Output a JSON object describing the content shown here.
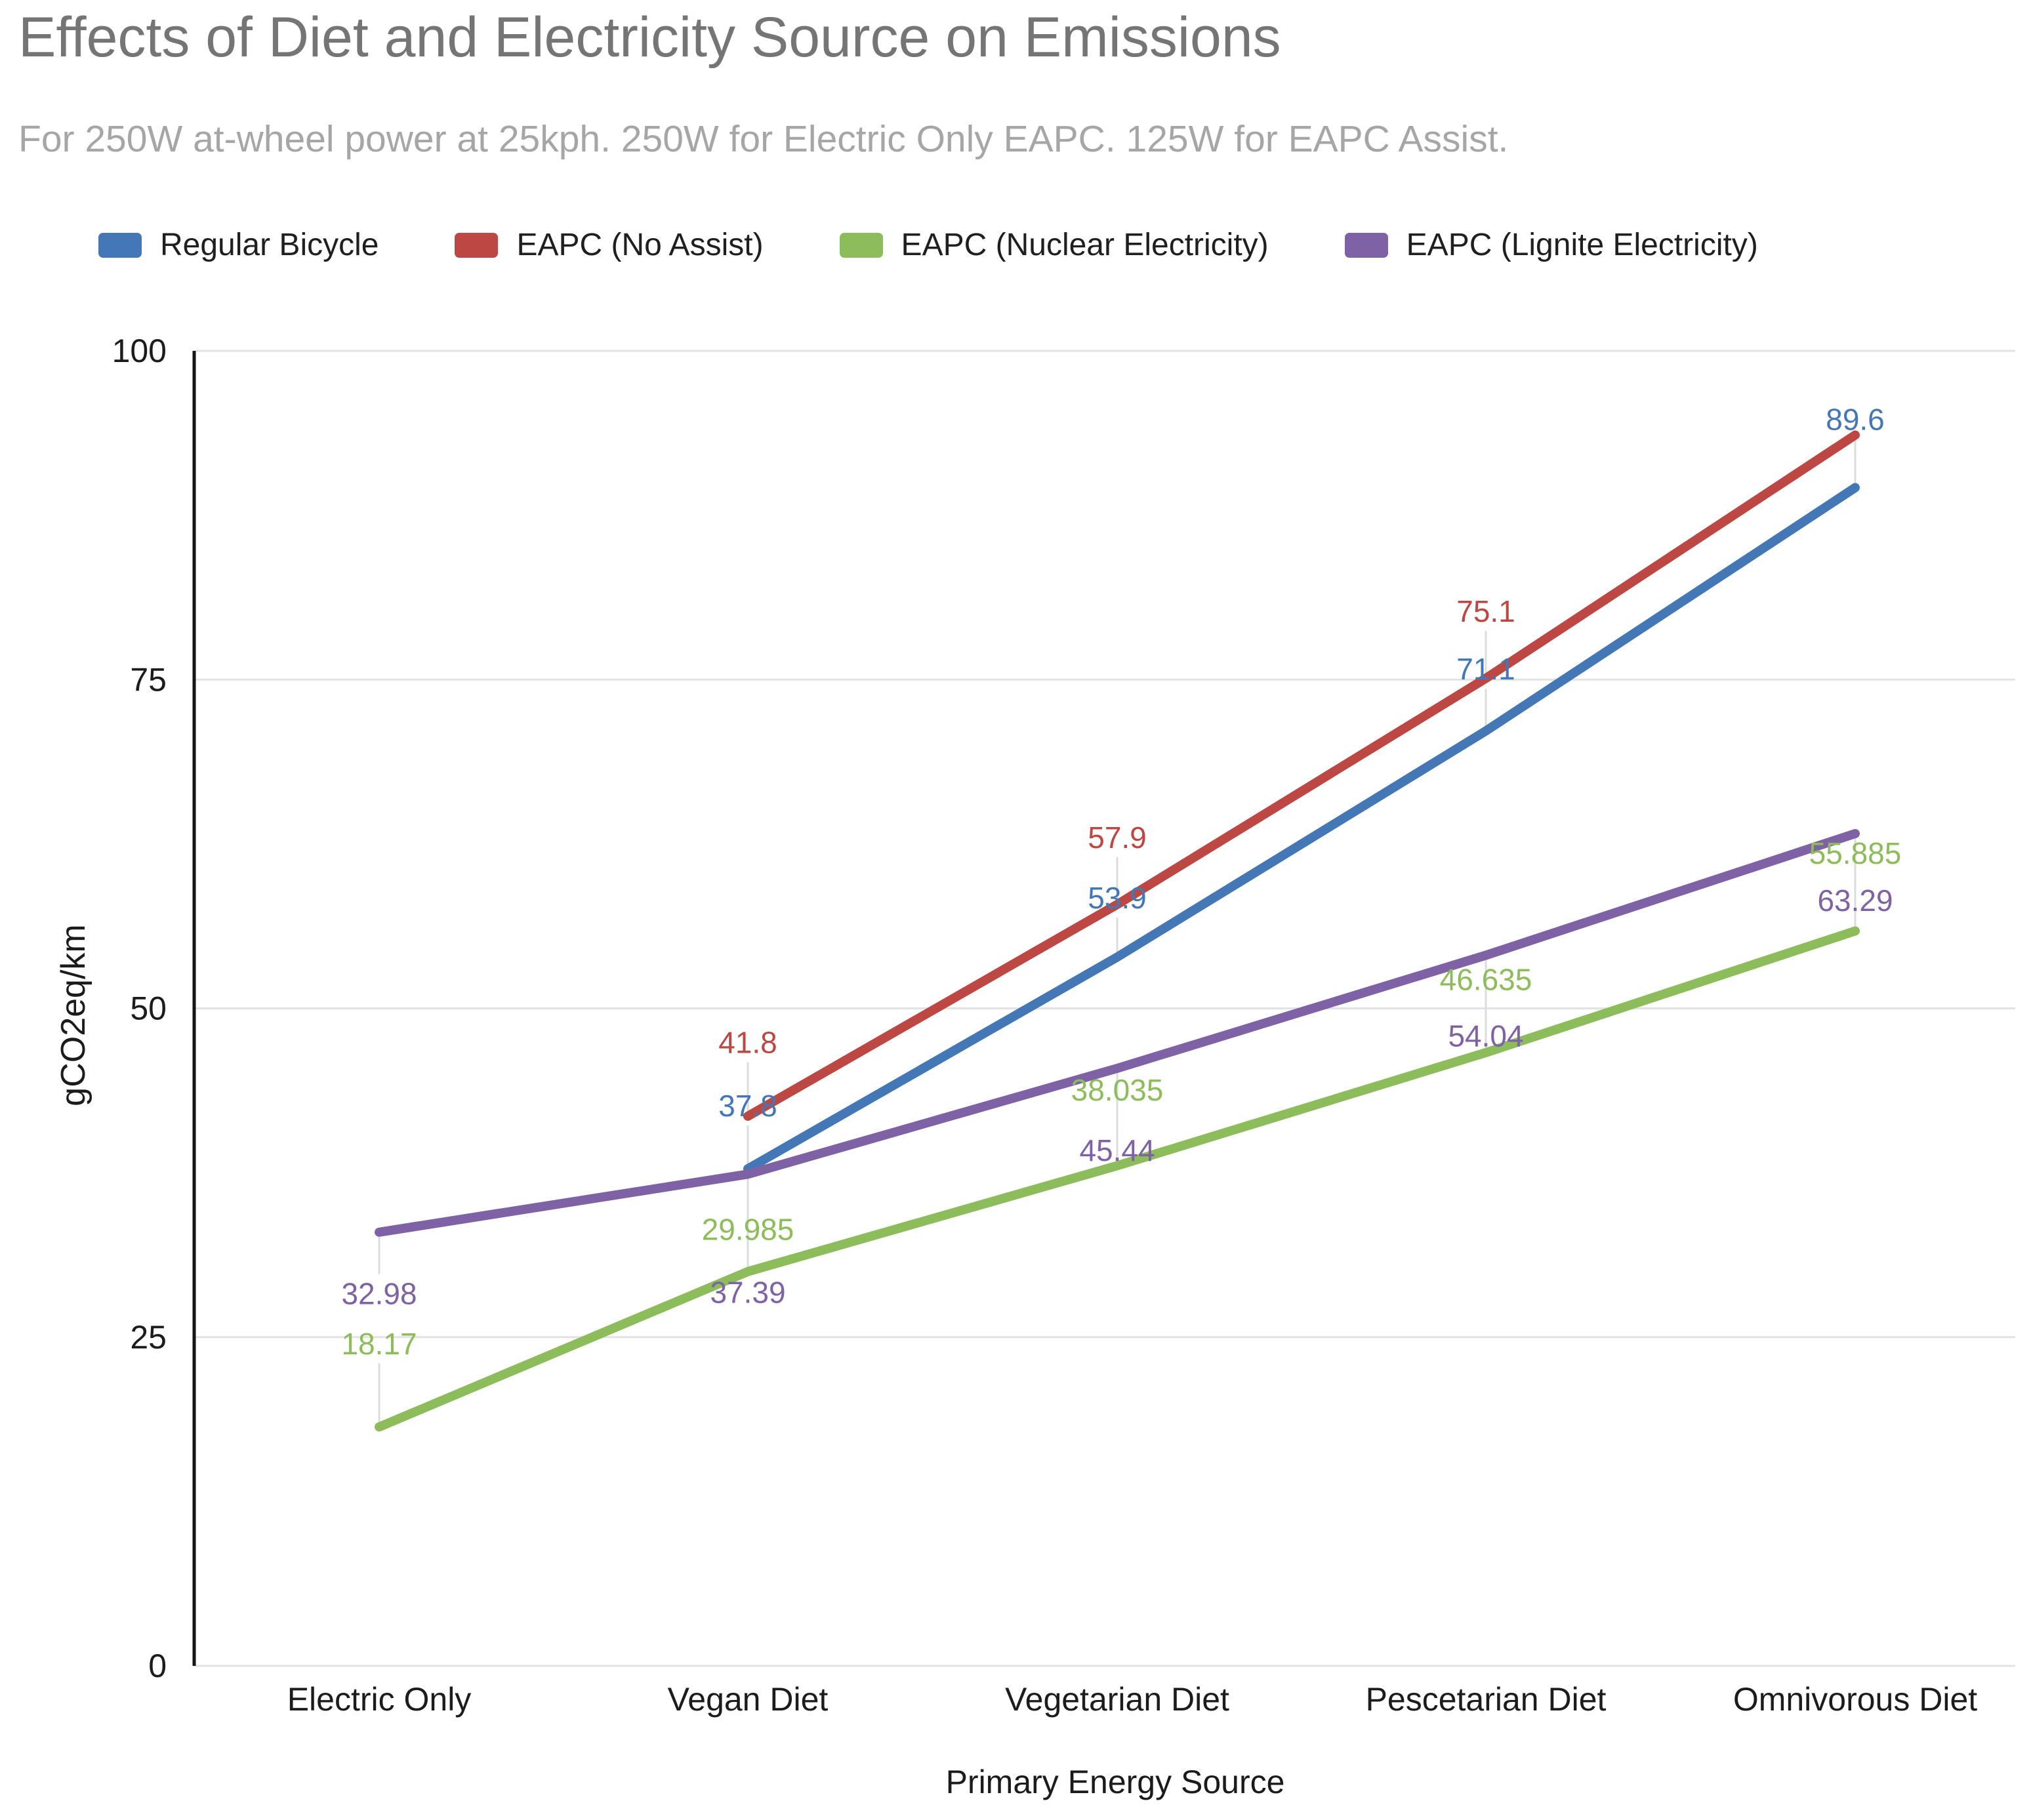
{
  "page": {
    "background": "#ffffff"
  },
  "chart_data": {
    "type": "line",
    "title": "Effects of Diet and Electricity Source on Emissions",
    "subtitle": "For 250W at-wheel power at 25kph. 250W for Electric Only EAPC. 125W for EAPC Assist.",
    "xlabel": "Primary Energy Source",
    "ylabel": "gCO2eq/km",
    "ylim": [
      0,
      100
    ],
    "yticks": [
      0,
      25,
      50,
      75,
      100
    ],
    "grid": true,
    "legend_position": "top",
    "categories": [
      "Electric Only",
      "Vegan Diet",
      "Vegetarian Diet",
      "Pescetarian Diet",
      "Omnivorous Diet"
    ],
    "series": [
      {
        "name": "Regular Bicycle",
        "color": "#4477b5",
        "values": [
          null,
          37.8,
          53.9,
          71.1,
          89.6
        ]
      },
      {
        "name": "EAPC (No Assist)",
        "color": "#bd4743",
        "values": [
          null,
          41.8,
          57.9,
          75.1,
          93.6
        ]
      },
      {
        "name": "EAPC (Nuclear Electricity)",
        "color": "#8cbd5a",
        "values": [
          18.17,
          29.985,
          38.035,
          46.635,
          55.885
        ]
      },
      {
        "name": "EAPC (Lignite Electricity)",
        "color": "#7e62a5",
        "values": [
          32.98,
          37.39,
          45.44,
          54.04,
          63.29
        ]
      }
    ],
    "data_labels": [
      {
        "series": 3,
        "point": 0,
        "text": "32.98",
        "label_y": 28.3
      },
      {
        "series": 2,
        "point": 0,
        "text": "18.17",
        "label_y": 24.5
      },
      {
        "series": 1,
        "point": 1,
        "text": "41.8",
        "label_y": 47.4
      },
      {
        "series": 0,
        "point": 1,
        "text": "37.8",
        "label_y": 42.6
      },
      {
        "series": 2,
        "point": 1,
        "text": "29.985",
        "label_y": 33.2
      },
      {
        "series": 3,
        "point": 1,
        "text": "37.39",
        "label_y": 28.4
      },
      {
        "series": 1,
        "point": 2,
        "text": "57.9",
        "label_y": 63.0
      },
      {
        "series": 0,
        "point": 2,
        "text": "53.9",
        "label_y": 58.4
      },
      {
        "series": 2,
        "point": 2,
        "text": "38.035",
        "label_y": 43.8
      },
      {
        "series": 3,
        "point": 2,
        "text": "45.44",
        "label_y": 39.2
      },
      {
        "series": 1,
        "point": 3,
        "text": "75.1",
        "label_y": 80.2
      },
      {
        "series": 0,
        "point": 3,
        "text": "71.1",
        "label_y": 75.8
      },
      {
        "series": 2,
        "point": 3,
        "text": "46.635",
        "label_y": 52.2
      },
      {
        "series": 3,
        "point": 3,
        "text": "54.04",
        "label_y": 47.9
      },
      {
        "series": 0,
        "point": 4,
        "text": "89.6",
        "label_y": 94.8
      },
      {
        "series": 2,
        "point": 4,
        "text": "55.885",
        "label_y": 61.8
      },
      {
        "series": 3,
        "point": 4,
        "text": "63.29",
        "label_y": 58.2
      }
    ],
    "colors": {
      "title_text": "#757575",
      "subtitle_text": "#a6a6a6",
      "axis_text": "#1f1f1f",
      "gridline": "#e3e3e3",
      "axis_line": "#141414",
      "leader_line": "#dcdcdc"
    }
  }
}
